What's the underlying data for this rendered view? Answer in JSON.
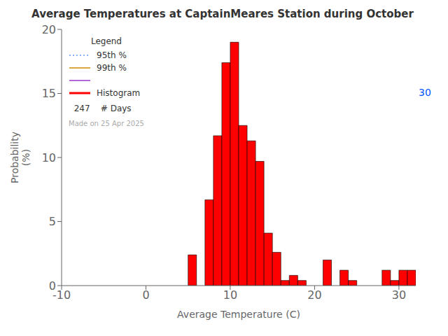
{
  "chart_data": {
    "type": "histogram",
    "title": "Average Temperatures at CaptainMeares Station during October",
    "x_label": "Average Temperature (C)",
    "y_label": "Probability\n(%)",
    "name": "Histogram",
    "bins": [
      5,
      6,
      7,
      8,
      9,
      10,
      11,
      12,
      13,
      14,
      15,
      16,
      17,
      18,
      19,
      20,
      21,
      22,
      23,
      24,
      25,
      26,
      27,
      28,
      29,
      30,
      31,
      32
    ],
    "values": [
      2.4,
      0.0,
      6.7,
      11.7,
      17.4,
      19.0,
      12.5,
      11.3,
      9.7,
      4.1,
      2.6,
      0.4,
      0.8,
      0.4,
      0.0,
      0.0,
      2.0,
      0.0,
      1.2,
      0.4,
      0.0,
      0.0,
      0.0,
      1.2,
      0.4,
      1.2,
      1.2
    ],
    "color": "#ff0000",
    "edge_color": "#000000",
    "xlim": [
      -10,
      32
    ],
    "ylim": [
      0,
      20
    ],
    "xticks": [
      -10,
      0,
      10,
      20,
      30
    ],
    "yticks": [
      0,
      5,
      10,
      15,
      20
    ],
    "grid": false,
    "legend": "upper left",
    "legend_title": "Legend",
    "legend_entries": [
      {
        "name": "95th %",
        "color": "#6699ff",
        "line_style": "dotted"
      },
      {
        "name": "99th %",
        "color": "#cc8800",
        "line_style": "solid"
      },
      {
        "color": "#9933cc",
        "line_style": "solid"
      }
    ],
    "annotations": [
      {
        "text": "30",
        "color": "#0055ff"
      },
      {
        "text": "  247    # Days"
      },
      {
        "text": "Made on 25 Apr 2025",
        "color": "#aaaaaa"
      }
    ]
  }
}
